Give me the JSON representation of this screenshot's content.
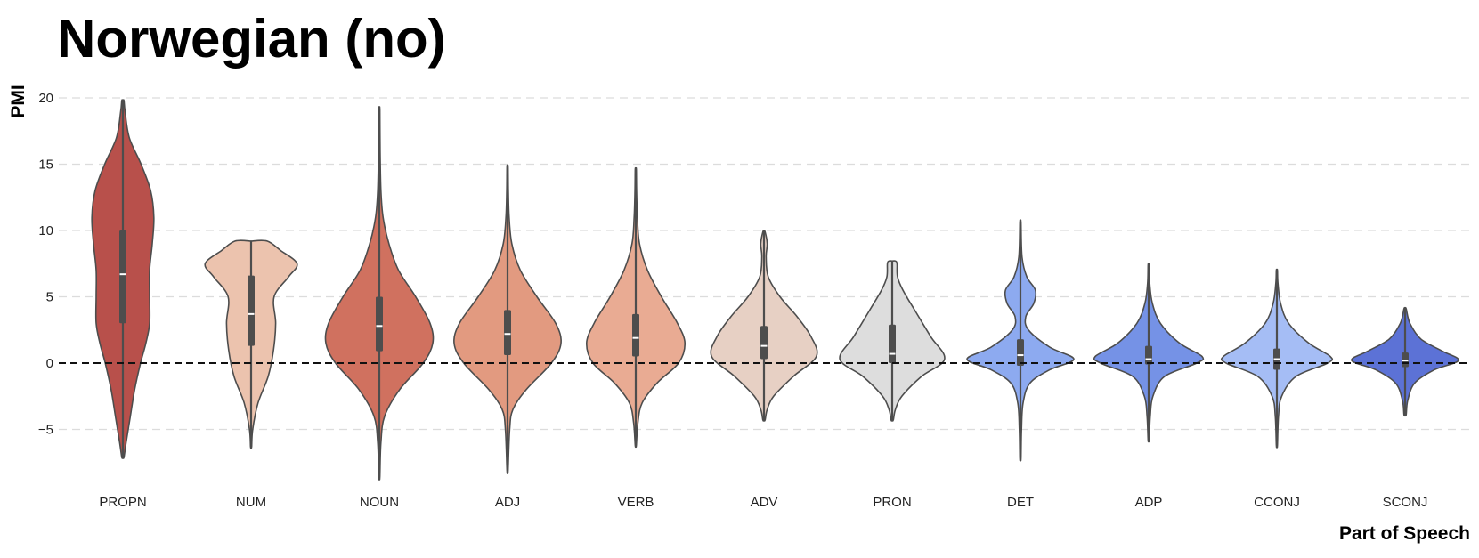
{
  "chart_data": {
    "type": "violin",
    "title": "Norwegian (no)",
    "xlabel": "Part of Speech",
    "ylabel": "PMI",
    "ylim": [
      -9,
      20.5
    ],
    "yticks": [
      20,
      15,
      10,
      5,
      0,
      -5
    ],
    "reference_line": 0,
    "grid": true,
    "series": [
      {
        "name": "PROPN",
        "color": "#b8504b",
        "min": -7.1,
        "max": 19.8,
        "q1": 3.0,
        "median": 6.7,
        "q3": 10.0,
        "whisker_low": -7.1,
        "whisker_high": 19.8,
        "density": [
          [
            -7.1,
            0.02
          ],
          [
            -6,
            0.06
          ],
          [
            -4,
            0.14
          ],
          [
            -2,
            0.22
          ],
          [
            0,
            0.33
          ],
          [
            1.5,
            0.43
          ],
          [
            3,
            0.5
          ],
          [
            5,
            0.5
          ],
          [
            7,
            0.5
          ],
          [
            9,
            0.55
          ],
          [
            11,
            0.58
          ],
          [
            13,
            0.52
          ],
          [
            15,
            0.34
          ],
          [
            17,
            0.12
          ],
          [
            19,
            0.04
          ],
          [
            19.8,
            0.02
          ]
        ]
      },
      {
        "name": "NUM",
        "color": "#ecc3ae",
        "min": -6.3,
        "max": 9.2,
        "q1": 1.3,
        "median": 3.7,
        "q3": 6.6,
        "whisker_low": -6.3,
        "whisker_high": 9.2,
        "density": [
          [
            -6.3,
            0.01
          ],
          [
            -5,
            0.03
          ],
          [
            -3,
            0.13
          ],
          [
            -1,
            0.32
          ],
          [
            1,
            0.42
          ],
          [
            3,
            0.46
          ],
          [
            5,
            0.43
          ],
          [
            6.5,
            0.7
          ],
          [
            7.5,
            0.86
          ],
          [
            8.5,
            0.55
          ],
          [
            9.2,
            0.3
          ]
        ]
      },
      {
        "name": "NOUN",
        "color": "#d0715f",
        "min": -8.6,
        "max": 19.1,
        "q1": 0.9,
        "median": 2.8,
        "q3": 5.0,
        "whisker_low": -8.6,
        "whisker_high": 19.1,
        "density": [
          [
            -8.6,
            0.01
          ],
          [
            -6,
            0.03
          ],
          [
            -4,
            0.1
          ],
          [
            -2,
            0.38
          ],
          [
            0,
            0.82
          ],
          [
            1.5,
            1.0
          ],
          [
            3,
            0.95
          ],
          [
            5,
            0.68
          ],
          [
            7,
            0.36
          ],
          [
            9,
            0.18
          ],
          [
            11,
            0.07
          ],
          [
            13,
            0.03
          ],
          [
            16,
            0.015
          ],
          [
            19.1,
            0.01
          ]
        ]
      },
      {
        "name": "ADJ",
        "color": "#e29a80",
        "min": -8.1,
        "max": 14.8,
        "q1": 0.6,
        "median": 2.2,
        "q3": 4.0,
        "whisker_low": -8.1,
        "whisker_high": 14.8,
        "density": [
          [
            -8.1,
            0.01
          ],
          [
            -5,
            0.04
          ],
          [
            -3.5,
            0.1
          ],
          [
            -2,
            0.35
          ],
          [
            0,
            0.82
          ],
          [
            1.5,
            1.0
          ],
          [
            3,
            0.9
          ],
          [
            5,
            0.55
          ],
          [
            7,
            0.24
          ],
          [
            9,
            0.08
          ],
          [
            11,
            0.03
          ],
          [
            13,
            0.015
          ],
          [
            14.8,
            0.01
          ]
        ]
      },
      {
        "name": "VERB",
        "color": "#e9ab93",
        "min": -6.2,
        "max": 14.6,
        "q1": 0.5,
        "median": 1.9,
        "q3": 3.7,
        "whisker_low": -6.2,
        "whisker_high": 14.6,
        "density": [
          [
            -6.2,
            0.01
          ],
          [
            -4.5,
            0.04
          ],
          [
            -3,
            0.12
          ],
          [
            -1.5,
            0.4
          ],
          [
            0,
            0.8
          ],
          [
            1.5,
            0.92
          ],
          [
            3,
            0.78
          ],
          [
            5,
            0.48
          ],
          [
            7,
            0.22
          ],
          [
            9,
            0.07
          ],
          [
            11,
            0.03
          ],
          [
            13,
            0.015
          ],
          [
            14.6,
            0.01
          ]
        ]
      },
      {
        "name": "ADV",
        "color": "#e7d0c4",
        "min": -4.3,
        "max": 9.9,
        "q1": 0.3,
        "median": 1.3,
        "q3": 2.8,
        "whisker_low": -4.3,
        "whisker_high": 9.9,
        "density": [
          [
            -4.3,
            0.02
          ],
          [
            -3.5,
            0.06
          ],
          [
            -2.5,
            0.18
          ],
          [
            -1,
            0.55
          ],
          [
            0.5,
            0.98
          ],
          [
            2,
            0.88
          ],
          [
            3.5,
            0.62
          ],
          [
            5,
            0.3
          ],
          [
            6.5,
            0.08
          ],
          [
            8,
            0.04
          ],
          [
            9,
            0.06
          ],
          [
            9.9,
            0.02
          ]
        ]
      },
      {
        "name": "PRON",
        "color": "#dddddd",
        "min": -4.3,
        "max": 7.7,
        "q1": 0.0,
        "median": 0.7,
        "q3": 2.9,
        "whisker_low": -4.3,
        "whisker_high": 7.7,
        "density": [
          [
            -4.3,
            0.02
          ],
          [
            -3.5,
            0.06
          ],
          [
            -2.5,
            0.18
          ],
          [
            -1,
            0.55
          ],
          [
            0.3,
            0.98
          ],
          [
            2,
            0.72
          ],
          [
            4,
            0.42
          ],
          [
            5.5,
            0.2
          ],
          [
            6.5,
            0.1
          ],
          [
            7.5,
            0.09
          ],
          [
            7.7,
            0.06
          ]
        ]
      },
      {
        "name": "DET",
        "color": "#8daaf0",
        "min": -7.2,
        "max": 10.6,
        "q1": -0.2,
        "median": 0.6,
        "q3": 1.8,
        "whisker_low": -7.2,
        "whisker_high": 10.6,
        "density": [
          [
            -7.2,
            0.01
          ],
          [
            -5,
            0.02
          ],
          [
            -3,
            0.05
          ],
          [
            -1.5,
            0.18
          ],
          [
            -0.5,
            0.55
          ],
          [
            0.3,
            1.0
          ],
          [
            1.2,
            0.55
          ],
          [
            2.5,
            0.15
          ],
          [
            3.5,
            0.1
          ],
          [
            4.5,
            0.25
          ],
          [
            5.5,
            0.28
          ],
          [
            6.5,
            0.12
          ],
          [
            8,
            0.03
          ],
          [
            10.6,
            0.01
          ]
        ]
      },
      {
        "name": "ADP",
        "color": "#7592e6",
        "min": -5.8,
        "max": 7.4,
        "q1": -0.1,
        "median": 0.3,
        "q3": 1.3,
        "whisker_low": -5.8,
        "whisker_high": 7.4,
        "density": [
          [
            -5.8,
            0.01
          ],
          [
            -4,
            0.03
          ],
          [
            -2.5,
            0.08
          ],
          [
            -1,
            0.3
          ],
          [
            0,
            0.9
          ],
          [
            0.5,
            1.0
          ],
          [
            1.5,
            0.58
          ],
          [
            3,
            0.22
          ],
          [
            4.5,
            0.07
          ],
          [
            6,
            0.02
          ],
          [
            7.4,
            0.01
          ]
        ]
      },
      {
        "name": "CCONJ",
        "color": "#a5bdf5",
        "min": -6.2,
        "max": 7.0,
        "q1": -0.5,
        "median": 0.3,
        "q3": 1.1,
        "whisker_low": -6.2,
        "whisker_high": 7.0,
        "density": [
          [
            -6.2,
            0.01
          ],
          [
            -4,
            0.03
          ],
          [
            -2.5,
            0.09
          ],
          [
            -1,
            0.36
          ],
          [
            0,
            0.95
          ],
          [
            0.5,
            1.0
          ],
          [
            1.5,
            0.6
          ],
          [
            3,
            0.22
          ],
          [
            4.5,
            0.07
          ],
          [
            6,
            0.02
          ],
          [
            7,
            0.01
          ]
        ]
      },
      {
        "name": "SCONJ",
        "color": "#5c72d6",
        "min": -3.9,
        "max": 4.1,
        "q1": -0.3,
        "median": 0.2,
        "q3": 0.8,
        "whisker_low": -3.9,
        "whisker_high": 4.1,
        "density": [
          [
            -3.9,
            0.02
          ],
          [
            -2.8,
            0.05
          ],
          [
            -1.5,
            0.18
          ],
          [
            -0.5,
            0.55
          ],
          [
            0.2,
            1.0
          ],
          [
            0.9,
            0.7
          ],
          [
            1.8,
            0.3
          ],
          [
            3,
            0.09
          ],
          [
            4.1,
            0.02
          ]
        ]
      }
    ]
  }
}
